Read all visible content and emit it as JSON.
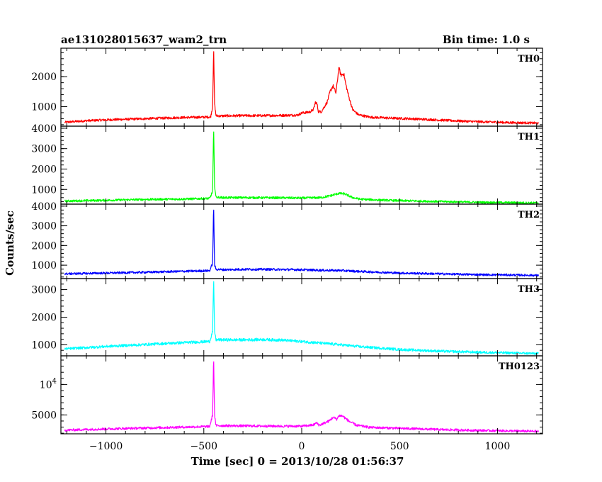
{
  "header": {
    "title": "ae131028015637_wam2_trn",
    "bin_time": "Bin time: 1.0 s"
  },
  "colors": {
    "th0": "#ff0000",
    "th1": "#00ff00",
    "th2": "#0000ff",
    "th3": "#00ffff",
    "th0123": "#ff00ff",
    "frame": "#000000"
  },
  "chart_data": {
    "type": "line",
    "title": "ae131028015637_wam2_trn",
    "bin_time": "Bin time: 1.0 s",
    "xlabel": "Time [sec] 0 = 2013/10/28 01:56:37",
    "ylabel": "Counts/sec",
    "xlim": [
      -1230,
      1230
    ],
    "xticks": [
      -1000,
      -500,
      0,
      500,
      1000
    ],
    "grid": false,
    "panels": [
      {
        "name": "TH0",
        "color": "#ff0000",
        "ylim": [
          350,
          2950
        ],
        "yticks": [
          {
            "value": 1000,
            "label": "1000"
          },
          {
            "value": 2000,
            "label": "2000"
          }
        ],
        "points": [
          [
            -1210,
            480
          ],
          [
            -1100,
            530
          ],
          [
            -1000,
            560
          ],
          [
            -900,
            580
          ],
          [
            -800,
            600
          ],
          [
            -700,
            620
          ],
          [
            -600,
            640
          ],
          [
            -500,
            650
          ],
          [
            -465,
            660
          ],
          [
            -455,
            1000
          ],
          [
            -450,
            2950
          ],
          [
            -445,
            1100
          ],
          [
            -438,
            700
          ],
          [
            -420,
            690
          ],
          [
            -300,
            700
          ],
          [
            -200,
            700
          ],
          [
            -100,
            710
          ],
          [
            -20,
            720
          ],
          [
            0,
            790
          ],
          [
            40,
            820
          ],
          [
            60,
            900
          ],
          [
            70,
            1150
          ],
          [
            78,
            1100
          ],
          [
            85,
            840
          ],
          [
            100,
            830
          ],
          [
            130,
            1150
          ],
          [
            145,
            1500
          ],
          [
            160,
            1700
          ],
          [
            175,
            1450
          ],
          [
            190,
            2300
          ],
          [
            200,
            2050
          ],
          [
            215,
            2100
          ],
          [
            225,
            1750
          ],
          [
            240,
            1350
          ],
          [
            260,
            900
          ],
          [
            290,
            730
          ],
          [
            350,
            650
          ],
          [
            450,
            620
          ],
          [
            550,
            600
          ],
          [
            650,
            570
          ],
          [
            750,
            540
          ],
          [
            850,
            510
          ],
          [
            950,
            490
          ],
          [
            1050,
            470
          ],
          [
            1150,
            460
          ],
          [
            1210,
            450
          ]
        ]
      },
      {
        "name": "TH1",
        "color": "#00ff00",
        "ylim": [
          280,
          4100
        ],
        "yticks": [
          {
            "value": 1000,
            "label": "1000"
          },
          {
            "value": 2000,
            "label": "2000"
          },
          {
            "value": 3000,
            "label": "3000"
          },
          {
            "value": 4000,
            "label": "4000"
          }
        ],
        "points": [
          [
            -1210,
            430
          ],
          [
            -1000,
            470
          ],
          [
            -800,
            510
          ],
          [
            -600,
            530
          ],
          [
            -470,
            560
          ],
          [
            -455,
            900
          ],
          [
            -450,
            4050
          ],
          [
            -445,
            1200
          ],
          [
            -438,
            620
          ],
          [
            -400,
            600
          ],
          [
            -300,
            600
          ],
          [
            -100,
            590
          ],
          [
            0,
            580
          ],
          [
            100,
            600
          ],
          [
            150,
            700
          ],
          [
            190,
            810
          ],
          [
            220,
            780
          ],
          [
            260,
            600
          ],
          [
            300,
            520
          ],
          [
            400,
            480
          ],
          [
            500,
            450
          ],
          [
            700,
            410
          ],
          [
            900,
            370
          ],
          [
            1100,
            350
          ],
          [
            1210,
            340
          ]
        ]
      },
      {
        "name": "TH2",
        "color": "#0000ff",
        "ylim": [
          320,
          4100
        ],
        "yticks": [
          {
            "value": 1000,
            "label": "1000"
          },
          {
            "value": 2000,
            "label": "2000"
          },
          {
            "value": 3000,
            "label": "3000"
          },
          {
            "value": 4000,
            "label": "4000"
          }
        ],
        "points": [
          [
            -1210,
            560
          ],
          [
            -1000,
            600
          ],
          [
            -800,
            640
          ],
          [
            -600,
            690
          ],
          [
            -470,
            720
          ],
          [
            -455,
            1100
          ],
          [
            -450,
            4050
          ],
          [
            -445,
            1000
          ],
          [
            -438,
            790
          ],
          [
            -400,
            770
          ],
          [
            -300,
            790
          ],
          [
            -200,
            790
          ],
          [
            -100,
            780
          ],
          [
            0,
            770
          ],
          [
            100,
            740
          ],
          [
            200,
            730
          ],
          [
            300,
            680
          ],
          [
            400,
            640
          ],
          [
            500,
            600
          ],
          [
            700,
            560
          ],
          [
            900,
            520
          ],
          [
            1100,
            500
          ],
          [
            1210,
            480
          ]
        ]
      },
      {
        "name": "TH3",
        "color": "#00ffff",
        "ylim": [
          600,
          3400
        ],
        "yticks": [
          {
            "value": 1000,
            "label": "1000"
          },
          {
            "value": 2000,
            "label": "2000"
          },
          {
            "value": 3000,
            "label": "3000"
          }
        ],
        "points": [
          [
            -1210,
            850
          ],
          [
            -1000,
            940
          ],
          [
            -800,
            1010
          ],
          [
            -600,
            1080
          ],
          [
            -470,
            1120
          ],
          [
            -455,
            1500
          ],
          [
            -450,
            3400
          ],
          [
            -445,
            1500
          ],
          [
            -438,
            1180
          ],
          [
            -300,
            1180
          ],
          [
            -200,
            1190
          ],
          [
            -100,
            1170
          ],
          [
            0,
            1120
          ],
          [
            100,
            1060
          ],
          [
            200,
            1000
          ],
          [
            300,
            930
          ],
          [
            400,
            880
          ],
          [
            500,
            830
          ],
          [
            700,
            770
          ],
          [
            900,
            730
          ],
          [
            1100,
            700
          ],
          [
            1210,
            680
          ]
        ]
      },
      {
        "name": "TH0123",
        "color": "#ff00ff",
        "ylim": [
          1900,
          14700
        ],
        "yticks": [
          {
            "value": 5000,
            "label": "5000"
          },
          {
            "value": 10000,
            "label": "10^4"
          }
        ],
        "points": [
          [
            -1210,
            2500
          ],
          [
            -1000,
            2700
          ],
          [
            -800,
            2850
          ],
          [
            -600,
            3000
          ],
          [
            -470,
            3100
          ],
          [
            -455,
            5000
          ],
          [
            -450,
            14600
          ],
          [
            -445,
            5000
          ],
          [
            -438,
            3250
          ],
          [
            -300,
            3200
          ],
          [
            -100,
            3150
          ],
          [
            0,
            3150
          ],
          [
            60,
            3350
          ],
          [
            75,
            3700
          ],
          [
            90,
            3300
          ],
          [
            140,
            4000
          ],
          [
            160,
            4600
          ],
          [
            180,
            4300
          ],
          [
            190,
            4900
          ],
          [
            210,
            4800
          ],
          [
            240,
            4000
          ],
          [
            280,
            3300
          ],
          [
            350,
            2950
          ],
          [
            500,
            2800
          ],
          [
            700,
            2600
          ],
          [
            900,
            2450
          ],
          [
            1100,
            2350
          ],
          [
            1210,
            2300
          ]
        ]
      }
    ]
  }
}
